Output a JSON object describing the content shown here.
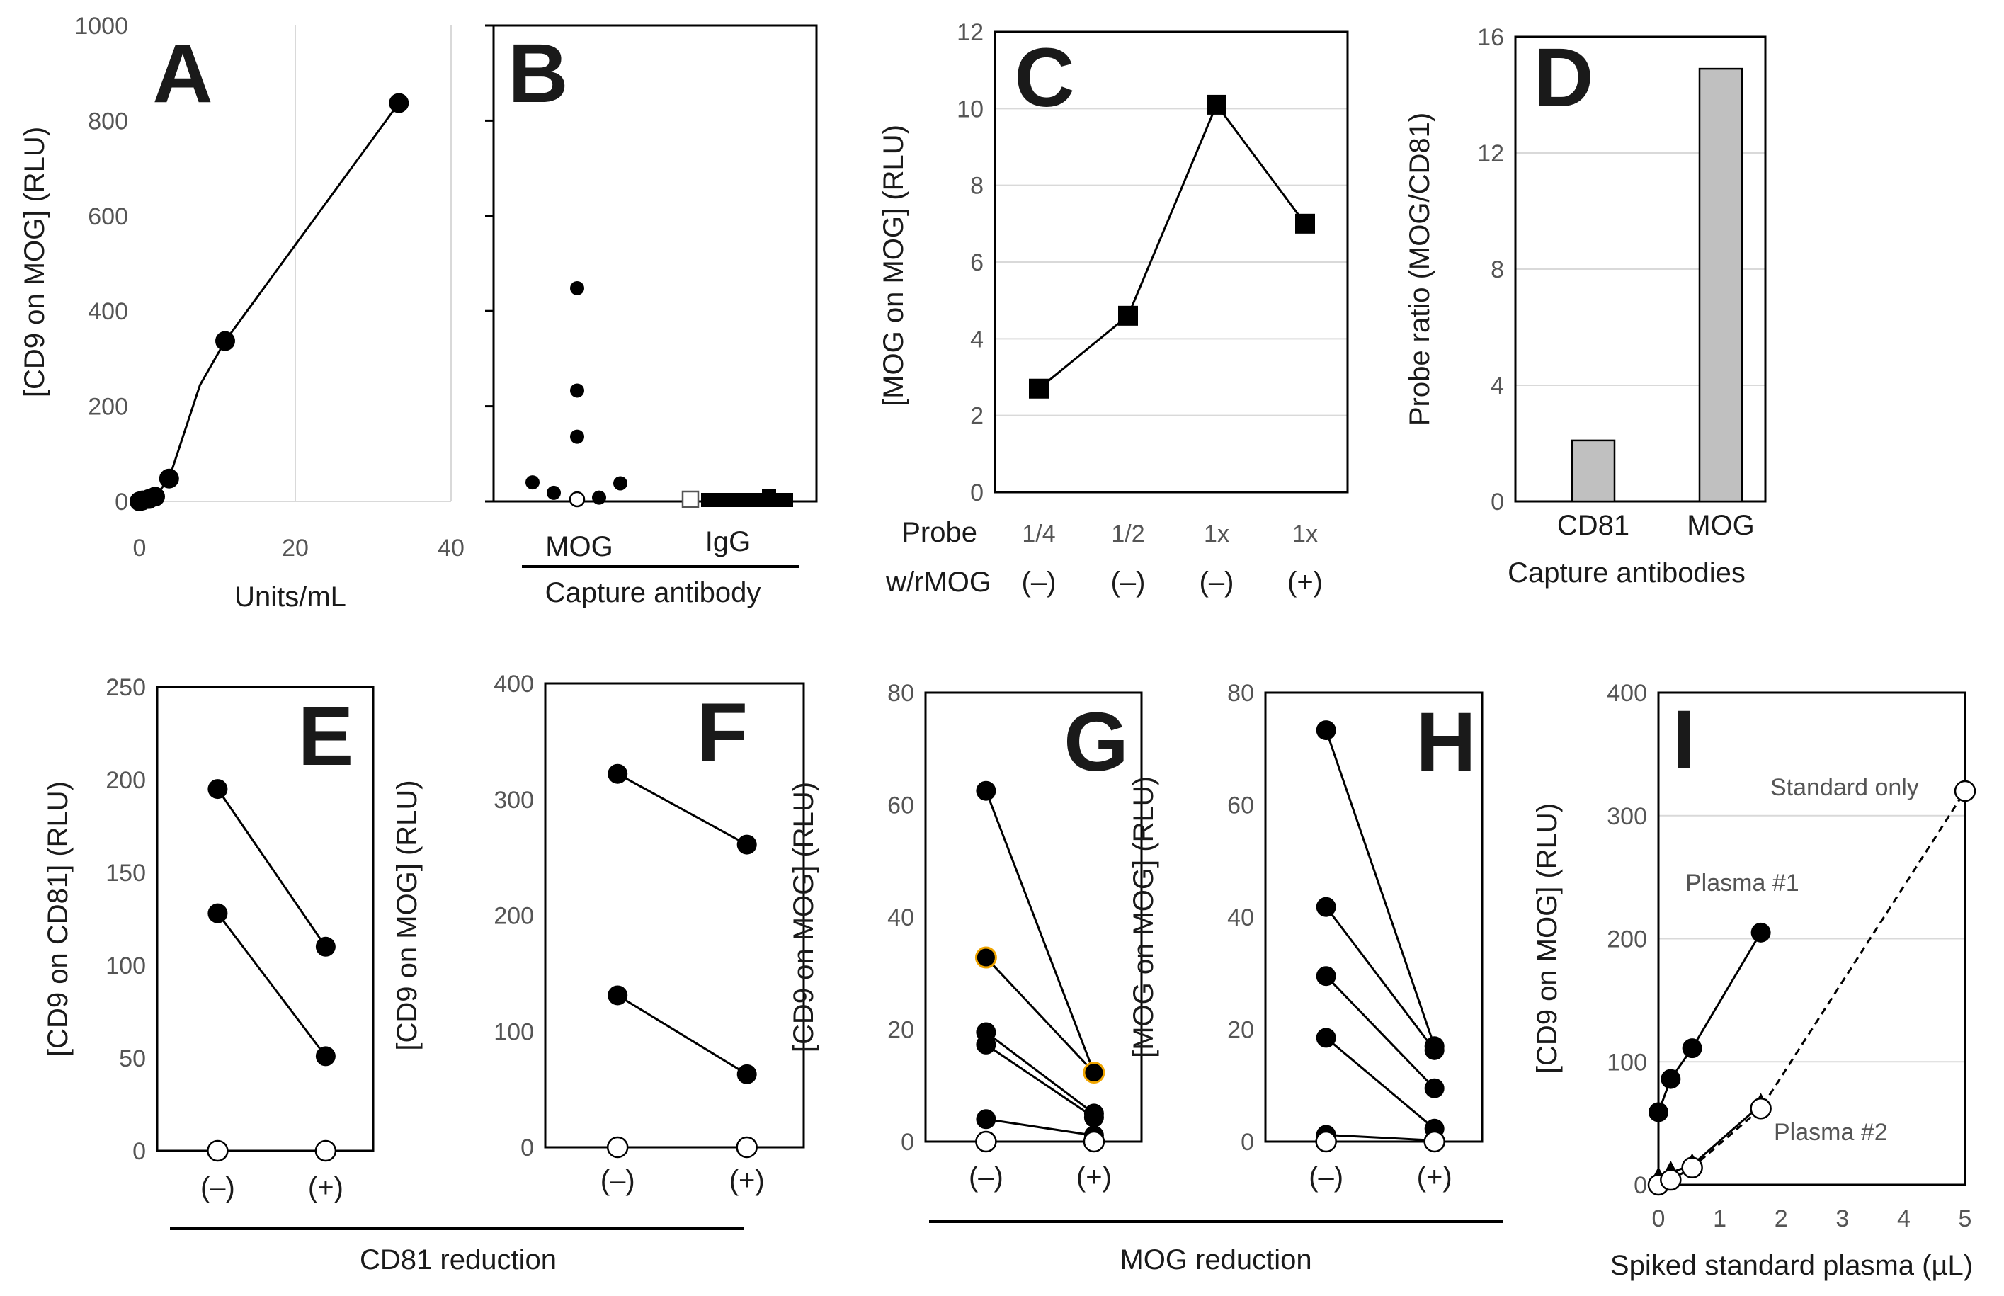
{
  "chart_data": [
    {
      "panel": "A",
      "type": "line",
      "ylabel": "[CD9 on MOG] (RLU)",
      "xlabel": "Units/mL",
      "xlim": [
        0,
        40
      ],
      "ylim": [
        0,
        1000
      ],
      "xticks": [
        "0",
        "20",
        "40"
      ],
      "yticks": [
        "0",
        "200",
        "400",
        "600",
        "800",
        "1000"
      ],
      "grid": "vertical",
      "series": [
        {
          "marker": "filled-circle",
          "x": [
            0,
            0.4,
            1.2,
            2,
            3.8,
            11,
            33.3
          ],
          "y": [
            0,
            2,
            5,
            10,
            48,
            337,
            837
          ]
        }
      ]
    },
    {
      "panel": "B",
      "type": "scatter",
      "xlabel": "Capture antibody",
      "categories": [
        "MOG",
        "IgG"
      ],
      "ylim": [
        0,
        1000
      ],
      "series": [
        {
          "category": "MOG",
          "marker": "filled-circle",
          "values": [
            37,
            15,
            445,
            230,
            133,
            5,
            35
          ]
        },
        {
          "category": "MOG",
          "marker": "open-circle",
          "values": [
            0
          ]
        },
        {
          "category": "IgG",
          "marker": "filled-square",
          "values": [
            0,
            0,
            0,
            0,
            0,
            0,
            0,
            0,
            0,
            0,
            8,
            0
          ]
        },
        {
          "category": "IgG",
          "marker": "open-square",
          "values": [
            0
          ]
        }
      ]
    },
    {
      "panel": "C",
      "type": "line",
      "ylabel": "[MOG on MOG] (RLU)",
      "ylim": [
        0,
        12
      ],
      "yticks": [
        "0",
        "2",
        "4",
        "6",
        "8",
        "10",
        "12"
      ],
      "grid": "horizontal",
      "row_labels": [
        "Probe",
        "w/rMOG"
      ],
      "categories": [
        {
          "probe": "1/4",
          "rmog": "(–)"
        },
        {
          "probe": "1/2",
          "rmog": "(–)"
        },
        {
          "probe": "1x",
          "rmog": "(–)"
        },
        {
          "probe": "1x",
          "rmog": "(+)"
        }
      ],
      "series": [
        {
          "marker": "filled-square",
          "values": [
            2.7,
            4.6,
            10.1,
            7.0
          ]
        }
      ]
    },
    {
      "panel": "D",
      "type": "bar",
      "ylabel": "Probe ratio (MOG/CD81)",
      "xlabel": "Capture antibodies",
      "ylim": [
        0,
        16
      ],
      "yticks": [
        "0",
        "4",
        "8",
        "12",
        "16"
      ],
      "grid": "horizontal",
      "categories": [
        "CD81",
        "MOG"
      ],
      "values": [
        2.1,
        14.9
      ],
      "color": "#c0c0c0"
    },
    {
      "panel": "E",
      "type": "line",
      "ylabel": "[CD9 on CD81] (RLU)",
      "ylim": [
        0,
        250
      ],
      "yticks": [
        "0",
        "50",
        "100",
        "150",
        "200",
        "250"
      ],
      "categories": [
        "(–)",
        "(+)"
      ],
      "series": [
        {
          "marker": "filled-circle",
          "values": [
            195,
            110
          ]
        },
        {
          "marker": "filled-circle",
          "values": [
            128,
            51
          ]
        },
        {
          "marker": "open-circle",
          "dashed": true,
          "values": [
            0,
            0
          ]
        }
      ]
    },
    {
      "panel": "F",
      "type": "line",
      "ylabel": "[CD9 on MOG] (RLU)",
      "ylim": [
        0,
        400
      ],
      "yticks": [
        "0",
        "100",
        "200",
        "300",
        "400"
      ],
      "categories": [
        "(–)",
        "(+)"
      ],
      "series": [
        {
          "marker": "filled-circle",
          "values": [
            322,
            261
          ]
        },
        {
          "marker": "filled-circle",
          "values": [
            131,
            63
          ]
        },
        {
          "marker": "open-circle",
          "dashed": true,
          "values": [
            0,
            0
          ]
        }
      ]
    },
    {
      "panel": "G",
      "type": "line",
      "ylabel": "[CD9 on MOG] (RLU)",
      "ylim": [
        0,
        80
      ],
      "yticks": [
        "0",
        "20",
        "40",
        "60",
        "80"
      ],
      "categories": [
        "(–)",
        "(+)"
      ],
      "series": [
        {
          "marker": "filled-circle",
          "values": [
            62.5,
            12.3
          ]
        },
        {
          "marker": "filled-circle",
          "highlight": "#f0a500",
          "values": [
            32.8,
            12.3
          ]
        },
        {
          "marker": "filled-circle",
          "values": [
            19.5,
            5.0
          ]
        },
        {
          "marker": "filled-circle",
          "values": [
            17.3,
            4.3
          ]
        },
        {
          "marker": "filled-circle",
          "values": [
            4.0,
            1.1
          ]
        },
        {
          "marker": "open-circle",
          "dashed": true,
          "values": [
            0,
            0
          ]
        }
      ]
    },
    {
      "panel": "H",
      "type": "line",
      "ylabel": "[MOG on MOG] (RLU)",
      "ylim": [
        0,
        80
      ],
      "yticks": [
        "0",
        "20",
        "40",
        "60",
        "80"
      ],
      "categories": [
        "(–)",
        "(+)"
      ],
      "series": [
        {
          "marker": "filled-circle",
          "values": [
            73.3,
            17.0
          ]
        },
        {
          "marker": "filled-circle",
          "values": [
            41.8,
            16.3
          ]
        },
        {
          "marker": "filled-circle",
          "values": [
            29.5,
            9.5
          ]
        },
        {
          "marker": "filled-circle",
          "values": [
            18.5,
            2.3
          ]
        },
        {
          "marker": "filled-circle",
          "values": [
            1.2,
            0.2
          ]
        },
        {
          "marker": "open-circle",
          "dashed": true,
          "values": [
            0,
            0
          ]
        }
      ]
    },
    {
      "panel": "I",
      "type": "line",
      "ylabel": "[CD9 on MOG] (RLU)",
      "xlabel": "Spiked standard plasma (µL)",
      "xlim": [
        0,
        5
      ],
      "ylim": [
        0,
        400
      ],
      "xticks": [
        "0",
        "1",
        "2",
        "3",
        "4",
        "5"
      ],
      "yticks": [
        "0",
        "100",
        "200",
        "300",
        "400"
      ],
      "grid": "horizontal",
      "series": [
        {
          "name": "Plasma #1",
          "marker": "filled-circle",
          "x": [
            0,
            0.2,
            0.55,
            1.67
          ],
          "y": [
            59,
            86,
            111,
            205
          ]
        },
        {
          "name": "Plasma #2",
          "marker": "filled-triangle",
          "x": [
            0,
            0.2,
            0.55,
            1.67
          ],
          "y": [
            5,
            10,
            16,
            65
          ]
        },
        {
          "name": "Standard only",
          "marker": "open-circle",
          "dashed": true,
          "x": [
            0,
            0.2,
            0.55,
            1.67,
            5
          ],
          "y": [
            0,
            4,
            14,
            62,
            320
          ]
        }
      ]
    }
  ],
  "captions": {
    "cd81_reduction": "CD81 reduction",
    "mog_reduction": "MOG reduction"
  }
}
